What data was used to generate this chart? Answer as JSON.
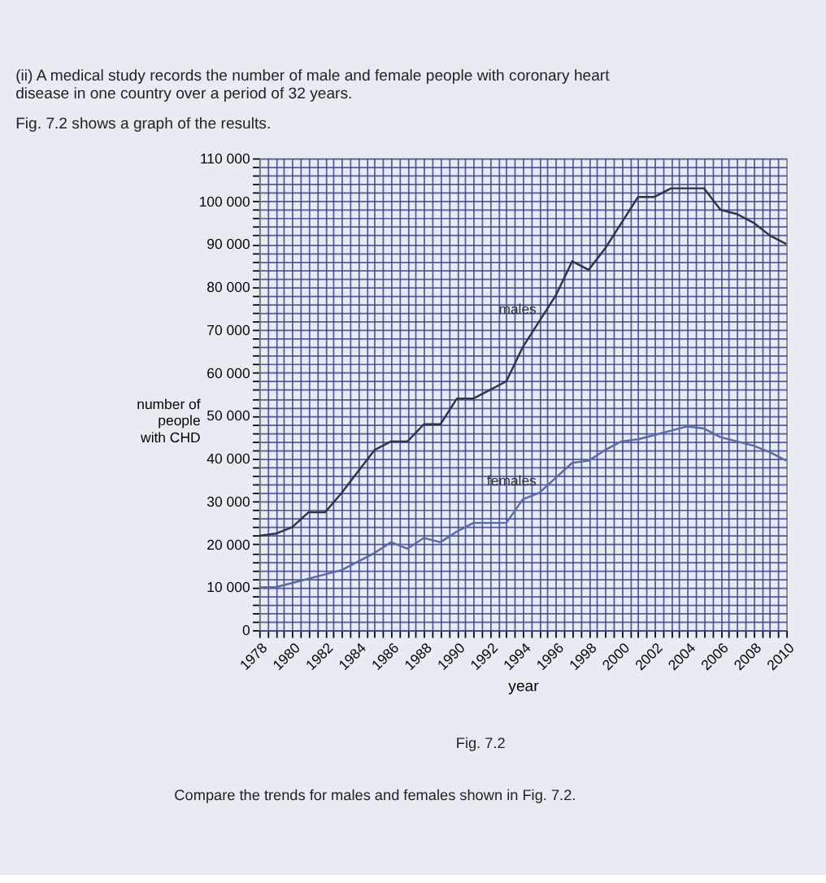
{
  "chart_data": {
    "type": "line",
    "title": "(ii) A medical study records the number of male and female people with coronary heart disease in one country over a period of 32 years.",
    "subtitle": "Fig. 7.2 shows a graph of the results.",
    "xlabel": "year",
    "ylabel": "number of people with CHD",
    "x": [
      1978,
      1979,
      1980,
      1981,
      1982,
      1983,
      1984,
      1985,
      1986,
      1987,
      1988,
      1989,
      1990,
      1991,
      1992,
      1993,
      1994,
      1995,
      1996,
      1997,
      1998,
      1999,
      2000,
      2001,
      2002,
      2003,
      2004,
      2005,
      2006,
      2007,
      2008,
      2009,
      2010
    ],
    "series": [
      {
        "name": "males",
        "color": "#2f3346",
        "values": [
          22000,
          22500,
          24000,
          27500,
          27500,
          32000,
          37000,
          42000,
          44000,
          44000,
          48000,
          48000,
          54000,
          54000,
          56000,
          58000,
          66000,
          72000,
          78000,
          86000,
          84000,
          89000,
          95000,
          101000,
          101000,
          103000,
          103000,
          103000,
          98000,
          97000,
          95000,
          92000,
          90000
        ]
      },
      {
        "name": "females",
        "color": "#5a6aa8",
        "values": [
          10000,
          10000,
          11000,
          12000,
          13000,
          14000,
          16000,
          18000,
          20500,
          19000,
          21500,
          20500,
          23000,
          25000,
          25000,
          25000,
          30500,
          32000,
          35500,
          39000,
          39500,
          42000,
          44000,
          44500,
          45500,
          46500,
          47500,
          47000,
          45000,
          44000,
          43000,
          41500,
          39500
        ]
      }
    ],
    "xlim": [
      1978,
      2010
    ],
    "xticks": [
      1978,
      {
        "value": 1978.5,
        "label": null
      },
      {
        "value": 1979,
        "label": null
      },
      {
        "value": 1979.5,
        "label": null
      },
      1980,
      {
        "value": 1980.5,
        "label": null
      },
      {
        "value": 1981,
        "label": null
      },
      {
        "value": 1981.5,
        "label": null
      },
      1982,
      {
        "value": 1982.5,
        "label": null
      },
      {
        "value": 1983,
        "label": null
      },
      {
        "value": 1983.5,
        "label": null
      },
      1984,
      {
        "value": 1984.5,
        "label": null
      },
      {
        "value": 1985,
        "label": null
      },
      {
        "value": 1985.5,
        "label": null
      },
      1986,
      {
        "value": 1986.5,
        "label": null
      },
      {
        "value": 1987,
        "label": null
      },
      {
        "value": 1987.5,
        "label": null
      },
      1988,
      {
        "value": 1988.5,
        "label": null
      },
      {
        "value": 1989,
        "label": null
      },
      {
        "value": 1989.5,
        "label": null
      },
      1990,
      {
        "value": 1990.5,
        "label": null
      },
      {
        "value": 1991,
        "label": null
      },
      {
        "value": 1991.5,
        "label": null
      },
      1992,
      {
        "value": 1992.5,
        "label": null
      },
      {
        "value": 1993,
        "label": null
      },
      {
        "value": 1993.5,
        "label": null
      },
      1994,
      {
        "value": 1994.5,
        "label": null
      },
      {
        "value": 1995,
        "label": null
      },
      {
        "value": 1995.5,
        "label": null
      },
      1996,
      {
        "value": 1996.5,
        "label": null
      },
      {
        "value": 1997,
        "label": null
      },
      {
        "value": 1997.5,
        "label": null
      },
      1998,
      {
        "value": 1998.5,
        "label": null
      },
      {
        "value": 1999,
        "label": null
      },
      {
        "value": 1999.5,
        "label": null
      },
      2000,
      {
        "value": 2000.5,
        "label": null
      },
      {
        "value": 2001,
        "label": null
      },
      {
        "value": 2001.5,
        "label": null
      },
      2002,
      {
        "value": 2002.5,
        "label": null
      },
      {
        "value": 2003,
        "label": null
      },
      {
        "value": 2003.5,
        "label": null
      },
      2004,
      {
        "value": 2004.5,
        "label": null
      },
      {
        "value": 2005,
        "label": null
      },
      {
        "value": 2005.5,
        "label": null
      },
      2006,
      {
        "value": 2006.5,
        "label": null
      },
      {
        "value": 2007,
        "label": null
      },
      {
        "value": 2007.5,
        "label": null
      },
      2008,
      {
        "value": 2008.5,
        "label": null
      },
      {
        "value": 2009,
        "label": null
      },
      {
        "value": 2009.5,
        "label": null
      },
      2010
    ],
    "ylim": [
      0,
      110000
    ],
    "yticks": [
      {
        "value": 0,
        "label": "0"
      },
      {
        "value": 2000,
        "label": null
      },
      {
        "value": 4000,
        "label": null
      },
      {
        "value": 6000,
        "label": null
      },
      {
        "value": 8000,
        "label": null
      },
      {
        "value": 10000,
        "label": "10 000"
      },
      {
        "value": 12000,
        "label": null
      },
      {
        "value": 14000,
        "label": null
      },
      {
        "value": 16000,
        "label": null
      },
      {
        "value": 18000,
        "label": null
      },
      {
        "value": 20000,
        "label": "20 000"
      },
      {
        "value": 22000,
        "label": null
      },
      {
        "value": 24000,
        "label": null
      },
      {
        "value": 26000,
        "label": null
      },
      {
        "value": 28000,
        "label": null
      },
      {
        "value": 30000,
        "label": "30 000"
      },
      {
        "value": 32000,
        "label": null
      },
      {
        "value": 34000,
        "label": null
      },
      {
        "value": 36000,
        "label": null
      },
      {
        "value": 38000,
        "label": null
      },
      {
        "value": 40000,
        "label": "40 000"
      },
      {
        "value": 42000,
        "label": null
      },
      {
        "value": 44000,
        "label": null
      },
      {
        "value": 46000,
        "label": null
      },
      {
        "value": 48000,
        "label": null
      },
      {
        "value": 50000,
        "label": "50 000"
      },
      {
        "value": 52000,
        "label": null
      },
      {
        "value": 54000,
        "label": null
      },
      {
        "value": 56000,
        "label": null
      },
      {
        "value": 58000,
        "label": null
      },
      {
        "value": 60000,
        "label": "60 000"
      },
      {
        "value": 62000,
        "label": null
      },
      {
        "value": 64000,
        "label": null
      },
      {
        "value": 66000,
        "label": null
      },
      {
        "value": 68000,
        "label": null
      },
      {
        "value": 70000,
        "label": "70 000"
      },
      {
        "value": 72000,
        "label": null
      },
      {
        "value": 74000,
        "label": null
      },
      {
        "value": 76000,
        "label": null
      },
      {
        "value": 78000,
        "label": null
      },
      {
        "value": 80000,
        "label": "80 000"
      },
      {
        "value": 82000,
        "label": null
      },
      {
        "value": 84000,
        "label": null
      },
      {
        "value": 86000,
        "label": null
      },
      {
        "value": 88000,
        "label": null
      },
      {
        "value": 90000,
        "label": "90 000"
      },
      {
        "value": 92000,
        "label": null
      },
      {
        "value": 94000,
        "label": null
      },
      {
        "value": 96000,
        "label": null
      },
      {
        "value": 98000,
        "label": null
      },
      {
        "value": 100000,
        "label": "100 000"
      },
      {
        "value": 102000,
        "label": null
      },
      {
        "value": 104000,
        "label": null
      },
      {
        "value": 106000,
        "label": null
      },
      {
        "value": 108000,
        "label": null
      },
      {
        "value": 110000,
        "label": "110 000"
      }
    ],
    "grid": true,
    "annotations": [
      "Fig. 7.2",
      "Compare the trends for males and females shown in Fig. 7.2."
    ]
  }
}
